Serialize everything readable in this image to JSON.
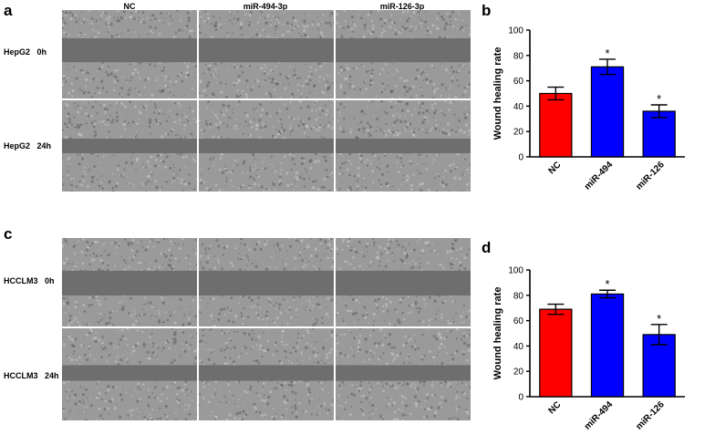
{
  "panel_a": {
    "letter": "a",
    "columns": [
      "NC",
      "miR-494-3p",
      "miR-126-3p"
    ],
    "rows": [
      {
        "label": "HepG2   0h",
        "time": "0h"
      },
      {
        "label": "HepG2   24h",
        "time": "24h"
      }
    ]
  },
  "panel_c": {
    "letter": "c",
    "rows": [
      {
        "label": "HCCLM3   0h",
        "time": "0h"
      },
      {
        "label": "HCCLM3   24h",
        "time": "24h"
      }
    ]
  },
  "colors": {
    "nc": "#ff0000",
    "mir": "#0000ff",
    "cells": "#9a9a9a",
    "gap": "#6e6e6e"
  },
  "chart_data": [
    {
      "panel": "b",
      "type": "bar",
      "categories": [
        "NC",
        "miR-494",
        "miR-126"
      ],
      "values": [
        50,
        71,
        36
      ],
      "errors": [
        5,
        6,
        5
      ],
      "significance": [
        "",
        "*",
        "*"
      ],
      "bar_colors": [
        "#ff0000",
        "#0000ff",
        "#0000ff"
      ],
      "ylabel": "Wound healing rate",
      "ylim": [
        0,
        100
      ],
      "yticks": [
        0,
        20,
        40,
        60,
        80,
        100
      ],
      "grid": false
    },
    {
      "panel": "d",
      "type": "bar",
      "categories": [
        "NC",
        "miR-494",
        "miR-126"
      ],
      "values": [
        69,
        81,
        49
      ],
      "errors": [
        4,
        3,
        8
      ],
      "significance": [
        "",
        "*",
        "*"
      ],
      "bar_colors": [
        "#ff0000",
        "#0000ff",
        "#0000ff"
      ],
      "ylabel": "Wound healing rate",
      "ylim": [
        0,
        100
      ],
      "yticks": [
        0,
        20,
        40,
        60,
        80,
        100
      ],
      "grid": false
    }
  ]
}
